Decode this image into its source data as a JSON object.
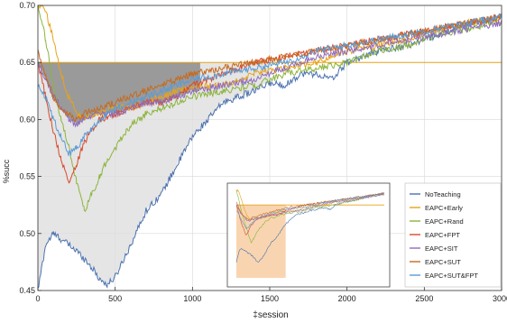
{
  "chart_data": {
    "type": "line",
    "title": "",
    "xlabel": "‡session",
    "ylabel": "%succ",
    "xlim": [
      0,
      3000
    ],
    "ylim": [
      0.45,
      0.7
    ],
    "x_ticks": [
      0,
      500,
      1000,
      1500,
      2000,
      2500,
      3000
    ],
    "y_ticks": [
      0.45,
      0.5,
      0.55,
      0.6,
      0.65,
      0.7
    ],
    "x_tick_labels": [
      "0",
      "500",
      "1000",
      "1500",
      "2000",
      "2500",
      "3000"
    ],
    "y_tick_labels": [
      "0.45",
      "0.50",
      "0.55",
      "0.60",
      "0.65",
      "0.70"
    ],
    "grid": true,
    "legend_position": "bottom-right",
    "reference_line": {
      "y": 0.65,
      "color": "#e8a317"
    },
    "series": [
      {
        "name": "NoTeaching",
        "color": "#4c72b0",
        "x": [
          0,
          50,
          100,
          150,
          200,
          250,
          300,
          350,
          400,
          450,
          500,
          600,
          700,
          800,
          900,
          1000,
          1100,
          1200,
          1300,
          1400,
          1500,
          1600,
          1700,
          1800,
          1900,
          2000,
          2200,
          2400,
          2600,
          2800,
          3000
        ],
        "y": [
          0.45,
          0.49,
          0.5,
          0.495,
          0.49,
          0.485,
          0.478,
          0.47,
          0.46,
          0.455,
          0.462,
          0.49,
          0.52,
          0.535,
          0.56,
          0.585,
          0.6,
          0.615,
          0.62,
          0.625,
          0.632,
          0.63,
          0.64,
          0.64,
          0.635,
          0.65,
          0.66,
          0.665,
          0.675,
          0.685,
          0.69
        ]
      },
      {
        "name": "EAPC+Early",
        "color": "#e8a317",
        "x": [
          0,
          30,
          60,
          100,
          150,
          200,
          250,
          300,
          400,
          500,
          600,
          700,
          800,
          900,
          1000,
          1200,
          1400,
          1600,
          1800,
          2000,
          2200,
          2400,
          2600,
          2800,
          3000
        ],
        "y": [
          0.7,
          0.7,
          0.69,
          0.67,
          0.64,
          0.62,
          0.605,
          0.6,
          0.605,
          0.61,
          0.61,
          0.615,
          0.62,
          0.625,
          0.628,
          0.63,
          0.64,
          0.645,
          0.65,
          0.66,
          0.665,
          0.67,
          0.68,
          0.685,
          0.69
        ]
      },
      {
        "name": "EAPC+Rand",
        "color": "#8cb43c",
        "x": [
          0,
          50,
          100,
          150,
          200,
          250,
          300,
          350,
          400,
          450,
          500,
          600,
          700,
          800,
          900,
          1000,
          1200,
          1400,
          1600,
          1800,
          2000,
          2200,
          2400,
          2600,
          2800,
          3000
        ],
        "y": [
          0.7,
          0.67,
          0.63,
          0.6,
          0.575,
          0.545,
          0.52,
          0.535,
          0.55,
          0.565,
          0.575,
          0.595,
          0.605,
          0.61,
          0.615,
          0.62,
          0.625,
          0.63,
          0.64,
          0.645,
          0.65,
          0.66,
          0.665,
          0.675,
          0.68,
          0.685
        ]
      },
      {
        "name": "EAPC+FPT",
        "color": "#d94a2b",
        "x": [
          0,
          50,
          100,
          150,
          200,
          250,
          300,
          400,
          500,
          600,
          700,
          800,
          900,
          1000,
          1100,
          1200,
          1300,
          1400,
          1600,
          1800,
          2000,
          2200,
          2400,
          2600,
          2800,
          3000
        ],
        "y": [
          0.65,
          0.62,
          0.59,
          0.565,
          0.545,
          0.56,
          0.58,
          0.6,
          0.605,
          0.61,
          0.615,
          0.615,
          0.62,
          0.63,
          0.635,
          0.64,
          0.645,
          0.65,
          0.655,
          0.66,
          0.665,
          0.67,
          0.675,
          0.68,
          0.685,
          0.69
        ]
      },
      {
        "name": "EAPC+SIT",
        "color": "#8e6bbf",
        "x": [
          0,
          50,
          100,
          150,
          200,
          250,
          300,
          400,
          500,
          600,
          700,
          800,
          900,
          1000,
          1200,
          1400,
          1600,
          1800,
          2000,
          2200,
          2400,
          2600,
          2800,
          3000
        ],
        "y": [
          0.65,
          0.635,
          0.62,
          0.61,
          0.6,
          0.595,
          0.6,
          0.605,
          0.605,
          0.61,
          0.615,
          0.615,
          0.62,
          0.625,
          0.63,
          0.635,
          0.645,
          0.655,
          0.66,
          0.665,
          0.67,
          0.675,
          0.68,
          0.685
        ]
      },
      {
        "name": "EAPC+SUT",
        "color": "#c66a1f",
        "x": [
          0,
          50,
          100,
          150,
          200,
          250,
          300,
          400,
          500,
          600,
          700,
          800,
          900,
          1000,
          1200,
          1400,
          1600,
          1800,
          2000,
          2200,
          2400,
          2600,
          2800,
          3000
        ],
        "y": [
          0.66,
          0.64,
          0.62,
          0.61,
          0.605,
          0.6,
          0.605,
          0.61,
          0.615,
          0.62,
          0.625,
          0.63,
          0.635,
          0.64,
          0.645,
          0.65,
          0.655,
          0.66,
          0.665,
          0.67,
          0.675,
          0.68,
          0.685,
          0.69
        ]
      },
      {
        "name": "EAPC+SUT&FPT",
        "color": "#5b9bd5",
        "x": [
          0,
          50,
          100,
          150,
          200,
          250,
          300,
          400,
          500,
          600,
          700,
          800,
          900,
          1000,
          1200,
          1400,
          1600,
          1800,
          2000,
          2200,
          2400,
          2600,
          2800,
          3000
        ],
        "y": [
          0.63,
          0.62,
          0.6,
          0.585,
          0.57,
          0.575,
          0.585,
          0.6,
          0.61,
          0.615,
          0.62,
          0.625,
          0.63,
          0.635,
          0.64,
          0.645,
          0.65,
          0.66,
          0.665,
          0.67,
          0.675,
          0.68,
          0.685,
          0.69
        ]
      }
    ]
  }
}
